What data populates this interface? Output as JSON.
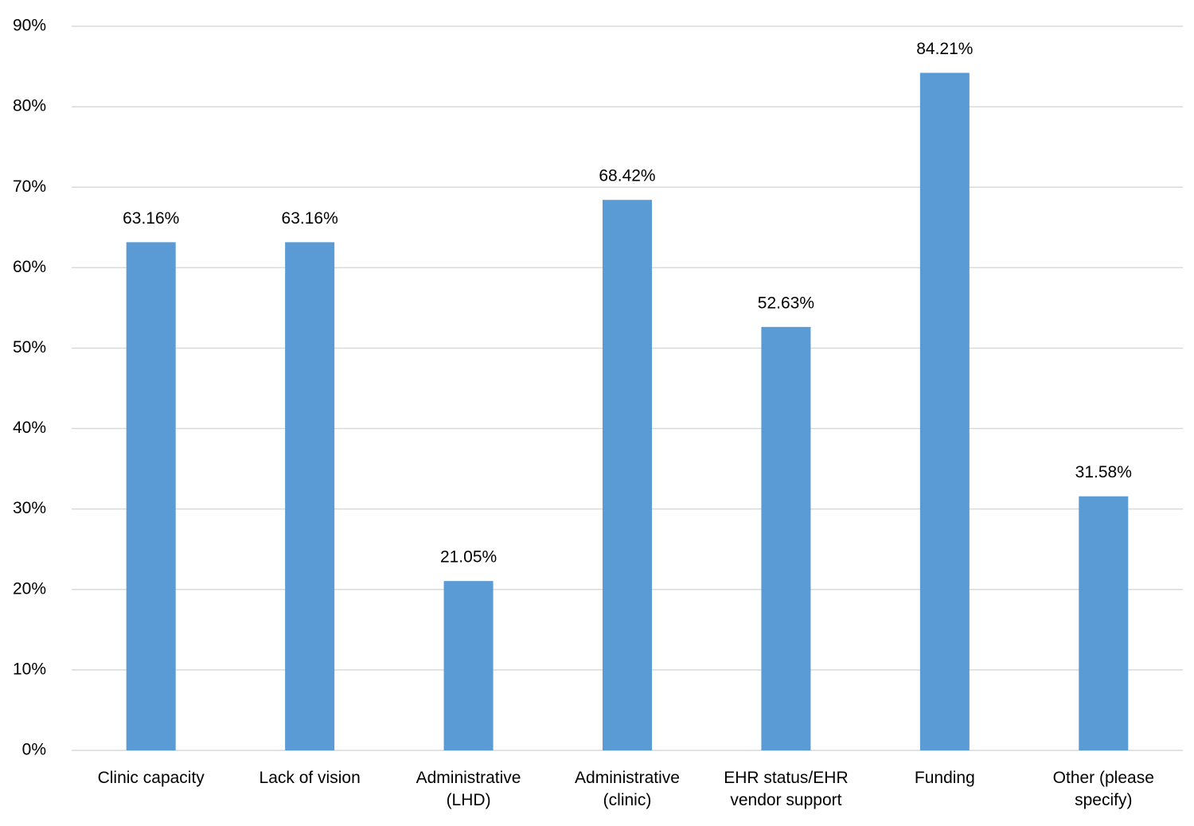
{
  "chart_data": {
    "type": "bar",
    "categories": [
      "Clinic capacity",
      "Lack of vision",
      "Administrative (LHD)",
      "Administrative (clinic)",
      "EHR status/EHR vendor support",
      "Funding",
      "Other (please specify)"
    ],
    "values": [
      63.16,
      63.16,
      21.05,
      68.42,
      52.63,
      84.21,
      31.58
    ],
    "value_labels": [
      "63.16%",
      "63.16%",
      "21.05%",
      "68.42%",
      "52.63%",
      "84.21%",
      "31.58%"
    ],
    "color": "#5b9bd5",
    "ylim": [
      0,
      90
    ],
    "yticks": [
      {
        "value": 0,
        "label": "0%"
      },
      {
        "value": 10,
        "label": "10%"
      },
      {
        "value": 20,
        "label": "20%"
      },
      {
        "value": 30,
        "label": "30%"
      },
      {
        "value": 40,
        "label": "40%"
      },
      {
        "value": 50,
        "label": "50%"
      },
      {
        "value": 60,
        "label": "60%"
      },
      {
        "value": 70,
        "label": "70%"
      },
      {
        "value": 80,
        "label": "80%"
      },
      {
        "value": 90,
        "label": "90%"
      }
    ],
    "grid": true
  }
}
